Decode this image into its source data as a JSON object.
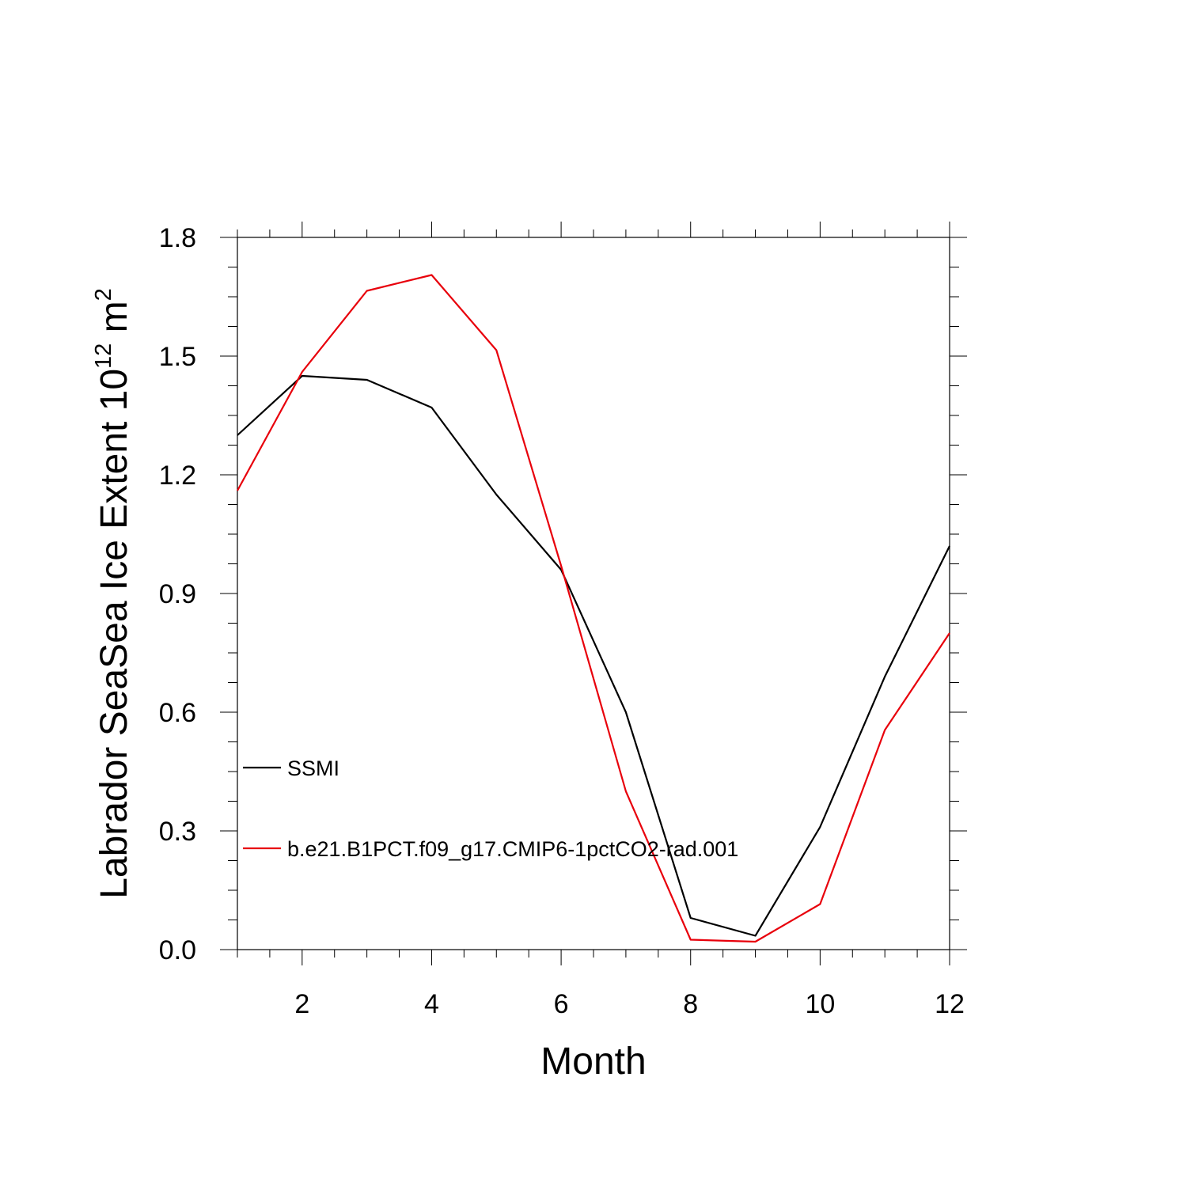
{
  "chart_data": {
    "type": "line",
    "title": "",
    "xlabel": "Month",
    "ylabel_main": "Labrador SeaSea Ice Extent 10",
    "ylabel_sup": "12",
    "ylabel_unit": " m",
    "ylabel_unit_sup": "2",
    "xlim": [
      1,
      12
    ],
    "ylim": [
      0.0,
      1.8
    ],
    "x_ticks": [
      2,
      4,
      6,
      8,
      10,
      12
    ],
    "x_tick_labels": [
      "2",
      "4",
      "6",
      "8",
      "10",
      "12"
    ],
    "y_ticks": [
      0.0,
      0.3,
      0.6,
      0.9,
      1.2,
      1.5,
      1.8
    ],
    "y_tick_labels": [
      "0.0",
      "0.3",
      "0.6",
      "0.9",
      "1.2",
      "1.5",
      "1.8"
    ],
    "x": [
      1,
      2,
      3,
      4,
      5,
      6,
      7,
      8,
      9,
      10,
      11,
      12
    ],
    "series": [
      {
        "name": "SSMI",
        "color": "#000000",
        "values": [
          1.3,
          1.45,
          1.44,
          1.37,
          1.15,
          0.96,
          0.6,
          0.08,
          0.035,
          0.31,
          0.69,
          1.02
        ]
      },
      {
        "name": "b.e21.B1PCT.f09_g17.CMIP6-1pctCO2-rad.001",
        "color": "#e8000b",
        "values": [
          1.16,
          1.46,
          1.665,
          1.705,
          1.515,
          0.97,
          0.4,
          0.025,
          0.02,
          0.115,
          0.555,
          0.8
        ]
      }
    ],
    "legend": "inside-lower-left",
    "grid": false
  }
}
